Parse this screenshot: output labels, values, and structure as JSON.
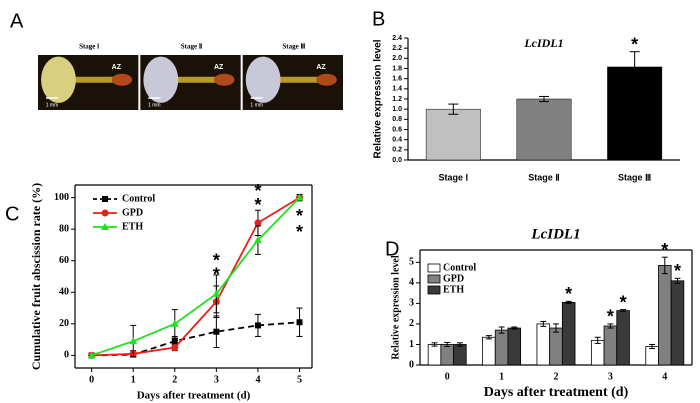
{
  "chart_data": [
    {
      "type": "image",
      "panel": "A",
      "stages": [
        {
          "label": "Stage Ⅰ",
          "az": "AZ",
          "scale": "1 mm"
        },
        {
          "label": "Stage Ⅱ",
          "az": "AZ",
          "scale": "1 mm"
        },
        {
          "label": "Stage Ⅲ",
          "az": "AZ",
          "scale": "1 mm"
        }
      ]
    },
    {
      "type": "bar",
      "panel": "B",
      "title": "LcIDL1",
      "ylabel": "Relative expression level",
      "categories": [
        "Stage Ⅰ",
        "Stage Ⅱ",
        "Stage Ⅲ"
      ],
      "values": [
        1.0,
        1.2,
        1.83
      ],
      "errors": [
        0.1,
        0.05,
        0.3
      ],
      "colors": [
        "#c0c0c0",
        "#808080",
        "#000000"
      ],
      "ylim": [
        0,
        2.4
      ],
      "yticks": [
        {
          "value": 0,
          "label": "0.0"
        },
        0.2,
        0.4,
        0.6,
        0.8,
        {
          "value": 1,
          "label": "1.0"
        },
        1.2,
        1.4,
        1.6,
        1.8,
        {
          "value": 2,
          "label": "2.0"
        },
        2.2,
        2.4
      ],
      "annotations": [
        {
          "text": "*",
          "index": 2
        }
      ]
    },
    {
      "type": "line",
      "panel": "C",
      "xlabel": "Days after treatment (d)",
      "ylabel": "Cumulative fruit abscission rate (%)",
      "x": [
        0,
        1,
        2,
        3,
        4,
        5
      ],
      "series": [
        {
          "name": "Control",
          "color": "#000000",
          "marker": "square",
          "dash": true,
          "values": [
            0,
            0.5,
            9,
            15,
            19,
            21
          ],
          "errors": [
            0,
            1,
            3,
            10,
            7,
            9
          ]
        },
        {
          "name": "GPD",
          "color": "#e8201c",
          "marker": "circle",
          "dash": false,
          "values": [
            0,
            1,
            5,
            34,
            84,
            100
          ],
          "errors": [
            0,
            2,
            2,
            10,
            8,
            2
          ]
        },
        {
          "name": "ETH",
          "color": "#22e022",
          "marker": "triangle",
          "dash": false,
          "values": [
            0,
            9,
            20,
            39,
            73,
            100
          ],
          "errors": [
            0,
            10,
            9,
            12,
            9,
            2
          ]
        }
      ],
      "xlim": [
        -0.4,
        5.3
      ],
      "xticks": [
        0,
        1,
        2,
        3,
        4,
        5
      ],
      "ylim": [
        -8,
        108
      ],
      "yticks": [
        0,
        20,
        40,
        60,
        80,
        100
      ],
      "legend": "upper-left",
      "annotations": [
        {
          "text": "*",
          "x": 3,
          "y": 62
        },
        {
          "text": "*",
          "x": 3,
          "y": 53
        },
        {
          "text": "*",
          "x": 4,
          "y": 106
        },
        {
          "text": "*",
          "x": 4,
          "y": 97
        },
        {
          "text": "*",
          "x": 5,
          "y": 90
        },
        {
          "text": "*",
          "x": 5,
          "y": 80
        }
      ]
    },
    {
      "type": "grouped-bar",
      "panel": "D",
      "title": "LcIDL1",
      "xlabel": "Days after treatment (d)",
      "ylabel": "Relative expression level",
      "categories": [
        "0",
        "1",
        "2",
        "3",
        "4"
      ],
      "series": [
        {
          "name": "Control",
          "color": "#ffffff",
          "values": [
            1.0,
            1.35,
            2.0,
            1.2,
            0.9
          ],
          "errors": [
            0.08,
            0.08,
            0.12,
            0.15,
            0.1
          ]
        },
        {
          "name": "GPD",
          "color": "#808080",
          "values": [
            1.0,
            1.7,
            1.8,
            1.9,
            4.85
          ],
          "errors": [
            0.1,
            0.15,
            0.2,
            0.1,
            0.4
          ]
        },
        {
          "name": "ETH",
          "color": "#3a3a3a",
          "values": [
            1.0,
            1.8,
            3.05,
            2.65,
            4.1
          ],
          "errors": [
            0.08,
            0.05,
            0.05,
            0.05,
            0.12
          ]
        }
      ],
      "ylim": [
        0,
        5.6
      ],
      "yticks": [
        0,
        1,
        2,
        3,
        4,
        5
      ],
      "legend": "upper-left",
      "annotations": [
        {
          "text": "*",
          "series": 2,
          "index": 2
        },
        {
          "text": "*",
          "series": 1,
          "index": 3
        },
        {
          "text": "*",
          "series": 2,
          "index": 3
        },
        {
          "text": "*",
          "series": 1,
          "index": 4
        },
        {
          "text": "*",
          "series": 2,
          "index": 4
        }
      ]
    }
  ]
}
